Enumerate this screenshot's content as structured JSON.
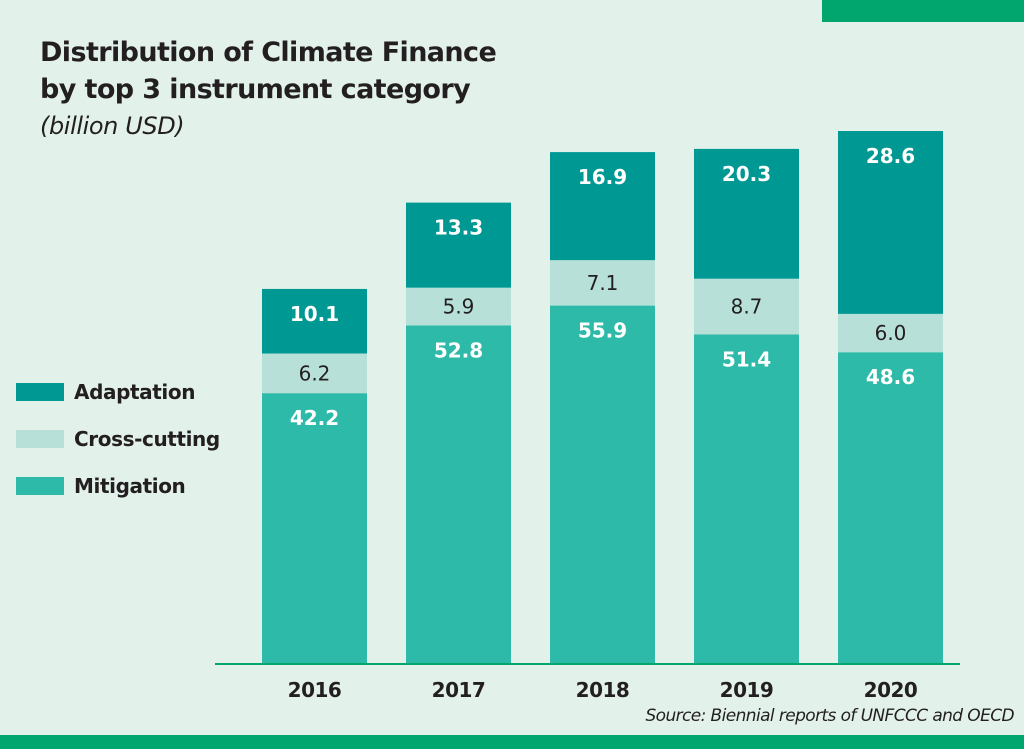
{
  "header": {
    "title_line1": "Distribution of Climate Finance",
    "title_line2": "by top 3 instrument category",
    "subtitle": "(billion USD)"
  },
  "source": "Source: Biennial reports of UNFCCC and OECD",
  "colors": {
    "adaptation": "#009893",
    "cross_cutting": "#b7e1d8",
    "mitigation": "#2dbaa8",
    "accent": "#00a66e",
    "background": "#e2f1ea",
    "axis": "#00a66e"
  },
  "legend": [
    {
      "label": "Adaptation",
      "series": "adaptation"
    },
    {
      "label": "Cross-cutting",
      "series": "cross_cutting"
    },
    {
      "label": "Mitigation",
      "series": "mitigation"
    }
  ],
  "chart_data": {
    "type": "bar",
    "stacked": true,
    "title": "Distribution of Climate Finance by top 3 instrument category",
    "subtitle": "(billion USD)",
    "xlabel": "",
    "ylabel": "billion USD",
    "categories": [
      "2016",
      "2017",
      "2018",
      "2019",
      "2020"
    ],
    "series": [
      {
        "name": "Mitigation",
        "key": "mitigation",
        "values": [
          42.2,
          52.8,
          55.9,
          51.4,
          48.6
        ]
      },
      {
        "name": "Cross-cutting",
        "key": "cross_cutting",
        "values": [
          6.2,
          5.9,
          7.1,
          8.7,
          6.0
        ]
      },
      {
        "name": "Adaptation",
        "key": "adaptation",
        "values": [
          10.1,
          13.3,
          16.9,
          20.3,
          28.6
        ]
      }
    ],
    "ylim": [
      0,
      83.2
    ],
    "grid": false,
    "legend_position": "left",
    "y_axis_visible": false
  }
}
